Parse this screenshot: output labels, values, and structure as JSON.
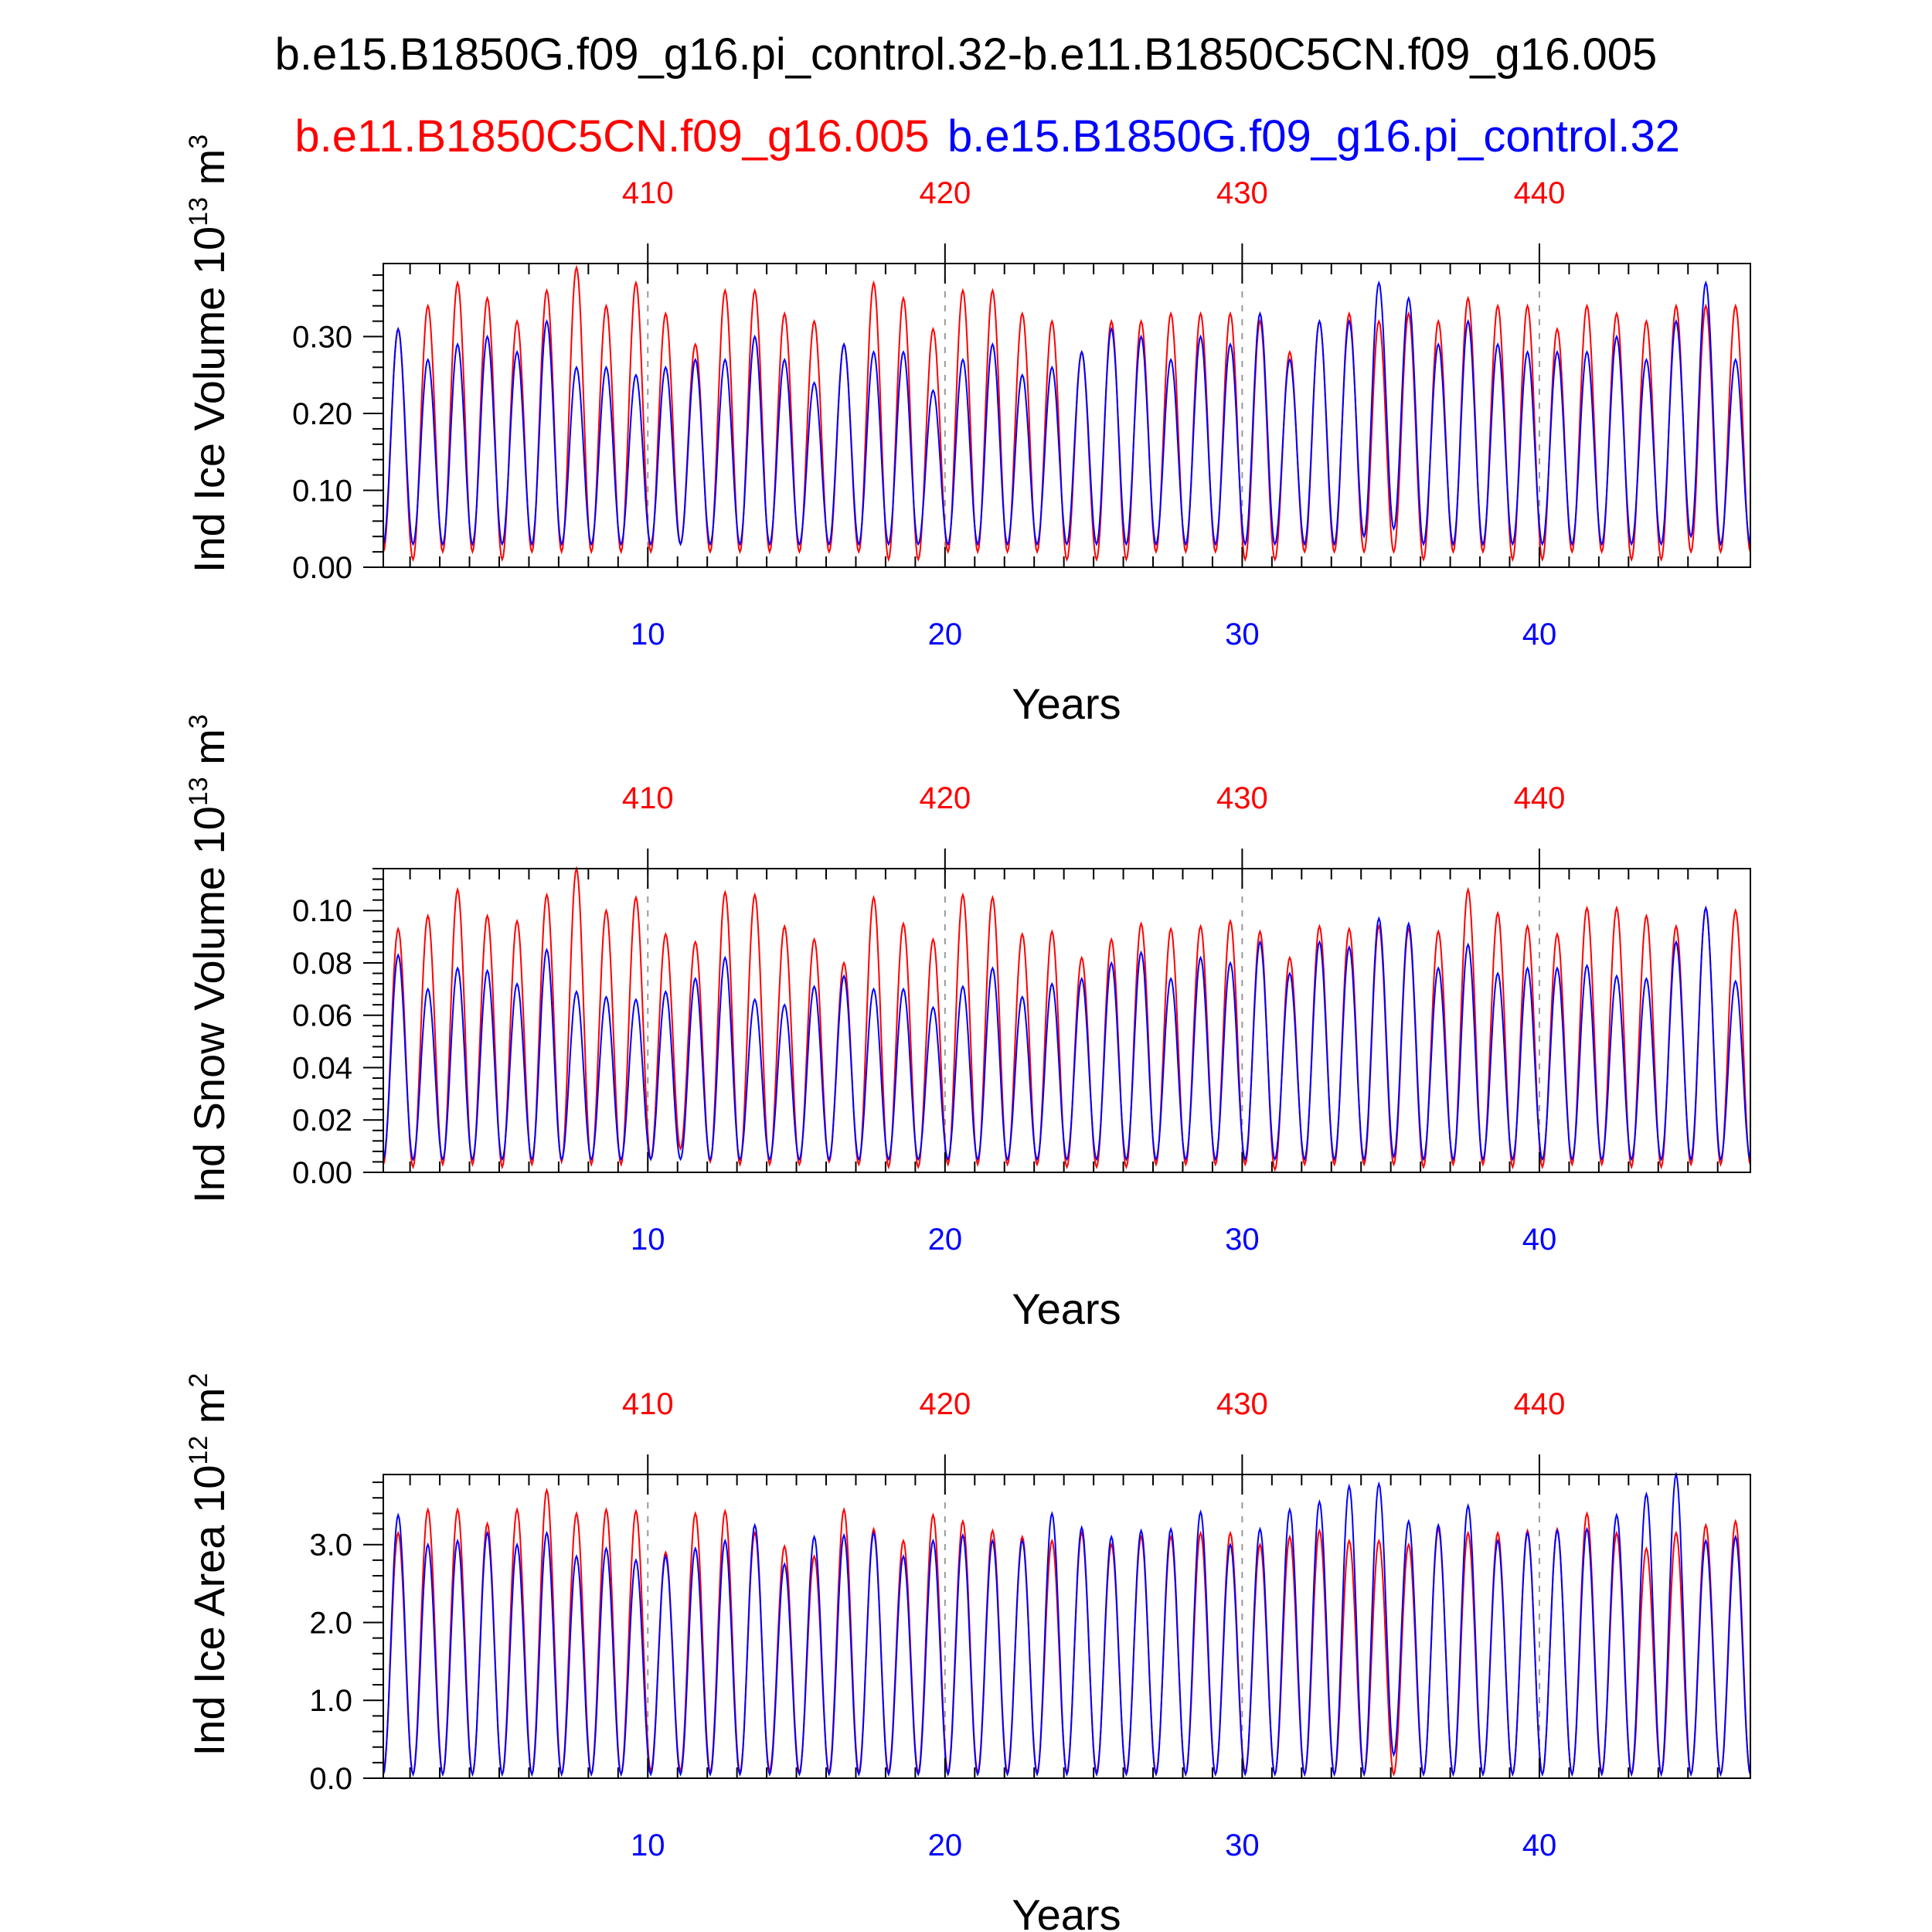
{
  "title": "b.e15.B1850G.f09_g16.pi_control.32-b.e11.B1850C5CN.f09_g16.005",
  "legend": {
    "red": "b.e11.B1850C5CN.f09_g16.005",
    "blue": "b.e15.B1850G.f09_g16.pi_control.32"
  },
  "colors": {
    "red": "#ff0000",
    "blue": "#0000ff",
    "axis": "#000000",
    "grid": "#999999"
  },
  "chart_data": [
    {
      "type": "line",
      "ylabel_main": "Ind Ice Volume 10",
      "ylabel_exp": "13",
      "ylabel_unit": " m",
      "ylabel_unit_exp": "3",
      "xlabel": "Years",
      "x_range": [
        1.1,
        47.1
      ],
      "ylim": [
        0,
        0.395
      ],
      "yticks": [
        0.0,
        0.1,
        0.2,
        0.3
      ],
      "ytick_labels": [
        "0.00",
        "0.10",
        "0.20",
        "0.30"
      ],
      "xticks_bottom": [
        10,
        20,
        30,
        40
      ],
      "xtick_labels_bottom": [
        "10",
        "20",
        "30",
        "40"
      ],
      "xticks_top": [
        10,
        20,
        30,
        40
      ],
      "xtick_labels_top": [
        "410",
        "420",
        "430",
        "440"
      ],
      "series": [
        {
          "name": "b.e11.B1850C5CN.f09_g16.005",
          "color": "red",
          "peaks": [
            0.31,
            0.34,
            0.37,
            0.35,
            0.32,
            0.36,
            0.39,
            0.34,
            0.37,
            0.33,
            0.29,
            0.36,
            0.36,
            0.33,
            0.32,
            0.29,
            0.37,
            0.35,
            0.31,
            0.36,
            0.36,
            0.33,
            0.32,
            0.28,
            0.32,
            0.32,
            0.33,
            0.33,
            0.33,
            0.32,
            0.28,
            0.32,
            0.33,
            0.32,
            0.33,
            0.32,
            0.35,
            0.34,
            0.34,
            0.31,
            0.34,
            0.33,
            0.32,
            0.34,
            0.34,
            0.34
          ],
          "troughs": [
            0.02,
            0.01,
            0.02,
            0.02,
            0.01,
            0.02,
            0.02,
            0.02,
            0.02,
            0.02,
            0.03,
            0.02,
            0.02,
            0.02,
            0.02,
            0.02,
            0.02,
            0.01,
            0.01,
            0.02,
            0.02,
            0.02,
            0.02,
            0.01,
            0.01,
            0.01,
            0.02,
            0.02,
            0.02,
            0.01,
            0.01,
            0.02,
            0.02,
            0.02,
            0.02,
            0.01,
            0.02,
            0.02,
            0.01,
            0.01,
            0.02,
            0.02,
            0.01,
            0.01,
            0.02,
            0.02
          ]
        },
        {
          "name": "b.e15.B1850G.f09_g16.pi_control.32",
          "color": "blue",
          "peaks": [
            0.31,
            0.27,
            0.29,
            0.3,
            0.28,
            0.32,
            0.26,
            0.26,
            0.25,
            0.26,
            0.27,
            0.27,
            0.3,
            0.27,
            0.24,
            0.29,
            0.28,
            0.28,
            0.23,
            0.27,
            0.29,
            0.25,
            0.26,
            0.28,
            0.31,
            0.3,
            0.27,
            0.3,
            0.29,
            0.33,
            0.27,
            0.32,
            0.32,
            0.37,
            0.35,
            0.29,
            0.32,
            0.29,
            0.28,
            0.28,
            0.28,
            0.3,
            0.27,
            0.32,
            0.37,
            0.27
          ],
          "troughs": [
            0.03,
            0.03,
            0.03,
            0.03,
            0.03,
            0.03,
            0.03,
            0.03,
            0.03,
            0.03,
            0.03,
            0.03,
            0.03,
            0.03,
            0.03,
            0.03,
            0.03,
            0.03,
            0.03,
            0.03,
            0.03,
            0.03,
            0.03,
            0.03,
            0.03,
            0.03,
            0.03,
            0.03,
            0.03,
            0.03,
            0.03,
            0.03,
            0.03,
            0.04,
            0.05,
            0.03,
            0.03,
            0.03,
            0.03,
            0.03,
            0.03,
            0.03,
            0.03,
            0.03,
            0.04,
            0.03
          ]
        }
      ]
    },
    {
      "type": "line",
      "ylabel_main": "Ind Snow Volume 10",
      "ylabel_exp": "13",
      "ylabel_unit": " m",
      "ylabel_unit_exp": "3",
      "xlabel": "Years",
      "x_range": [
        1.1,
        47.1
      ],
      "ylim": [
        0,
        0.116
      ],
      "yticks": [
        0.0,
        0.02,
        0.04,
        0.06,
        0.08,
        0.1
      ],
      "ytick_labels": [
        "0.00",
        "0.02",
        "0.04",
        "0.06",
        "0.08",
        "0.10"
      ],
      "xticks_bottom": [
        10,
        20,
        30,
        40
      ],
      "xtick_labels_bottom": [
        "10",
        "20",
        "30",
        "40"
      ],
      "xticks_top": [
        10,
        20,
        30,
        40
      ],
      "xtick_labels_top": [
        "410",
        "420",
        "430",
        "440"
      ],
      "series": [
        {
          "name": "b.e11.B1850C5CN.f09_g16.005",
          "color": "red",
          "peaks": [
            0.093,
            0.098,
            0.108,
            0.098,
            0.096,
            0.106,
            0.116,
            0.1,
            0.105,
            0.091,
            0.088,
            0.107,
            0.106,
            0.094,
            0.089,
            0.08,
            0.105,
            0.095,
            0.089,
            0.106,
            0.105,
            0.091,
            0.092,
            0.082,
            0.089,
            0.095,
            0.093,
            0.094,
            0.096,
            0.092,
            0.082,
            0.094,
            0.093,
            0.094,
            0.093,
            0.092,
            0.108,
            0.099,
            0.094,
            0.091,
            0.101,
            0.101,
            0.098,
            0.094,
            0.101,
            0.1
          ],
          "troughs": [
            0.003,
            0.002,
            0.003,
            0.003,
            0.002,
            0.003,
            0.004,
            0.003,
            0.003,
            0.005,
            0.009,
            0.004,
            0.003,
            0.003,
            0.003,
            0.004,
            0.003,
            0.002,
            0.002,
            0.003,
            0.003,
            0.003,
            0.003,
            0.002,
            0.002,
            0.002,
            0.003,
            0.003,
            0.003,
            0.003,
            0.001,
            0.003,
            0.003,
            0.003,
            0.003,
            0.002,
            0.003,
            0.003,
            0.002,
            0.002,
            0.003,
            0.003,
            0.002,
            0.002,
            0.003,
            0.003
          ]
        },
        {
          "name": "b.e15.B1850G.f09_g16.pi_control.32",
          "color": "blue",
          "peaks": [
            0.083,
            0.07,
            0.078,
            0.077,
            0.072,
            0.085,
            0.069,
            0.067,
            0.066,
            0.069,
            0.074,
            0.082,
            0.066,
            0.064,
            0.071,
            0.075,
            0.07,
            0.07,
            0.063,
            0.071,
            0.078,
            0.067,
            0.072,
            0.074,
            0.08,
            0.084,
            0.074,
            0.082,
            0.08,
            0.088,
            0.076,
            0.088,
            0.086,
            0.097,
            0.095,
            0.078,
            0.087,
            0.076,
            0.078,
            0.078,
            0.079,
            0.075,
            0.074,
            0.088,
            0.101,
            0.073
          ],
          "troughs": [
            0.005,
            0.005,
            0.005,
            0.005,
            0.005,
            0.005,
            0.005,
            0.005,
            0.005,
            0.005,
            0.005,
            0.005,
            0.005,
            0.005,
            0.005,
            0.005,
            0.005,
            0.005,
            0.005,
            0.005,
            0.005,
            0.005,
            0.005,
            0.005,
            0.005,
            0.005,
            0.005,
            0.005,
            0.005,
            0.005,
            0.005,
            0.005,
            0.005,
            0.005,
            0.006,
            0.005,
            0.005,
            0.005,
            0.005,
            0.005,
            0.005,
            0.005,
            0.005,
            0.005,
            0.005,
            0.005
          ]
        }
      ]
    },
    {
      "type": "line",
      "ylabel_main": "Ind Ice Area 10",
      "ylabel_exp": "12",
      "ylabel_unit": " m",
      "ylabel_unit_exp": "2",
      "xlabel": "Years",
      "x_range": [
        1.1,
        47.1
      ],
      "ylim": [
        0,
        3.9
      ],
      "yticks": [
        0.0,
        1.0,
        2.0,
        3.0
      ],
      "ytick_labels": [
        "0.0",
        "1.0",
        "2.0",
        "3.0"
      ],
      "xticks_bottom": [
        10,
        20,
        30,
        40
      ],
      "xtick_labels_bottom": [
        "10",
        "20",
        "30",
        "40"
      ],
      "xticks_top": [
        10,
        20,
        30,
        40
      ],
      "xtick_labels_top": [
        "410",
        "420",
        "430",
        "440"
      ],
      "series": [
        {
          "name": "b.e11.B1850C5CN.f09_g16.005",
          "color": "red",
          "peaks": [
            3.15,
            3.45,
            3.45,
            3.27,
            3.45,
            3.7,
            3.4,
            3.45,
            3.43,
            2.9,
            3.4,
            3.43,
            3.15,
            2.98,
            2.85,
            3.45,
            3.2,
            3.05,
            3.38,
            3.3,
            3.18,
            3.1,
            3.05,
            3.15,
            3.0,
            3.1,
            3.1,
            3.15,
            3.15,
            3.0,
            3.1,
            3.18,
            3.05,
            3.05,
            3.0,
            3.2,
            3.15,
            3.15,
            3.18,
            3.2,
            3.4,
            3.15,
            2.95,
            3.15,
            3.25,
            3.3
          ],
          "troughs": [
            0.1,
            0.05,
            0.05,
            0.05,
            0.05,
            0.05,
            0.05,
            0.05,
            0.05,
            0.1,
            0.1,
            0.08,
            0.08,
            0.1,
            0.08,
            0.08,
            0.08,
            0.08,
            0.08,
            0.08,
            0.08,
            0.08,
            0.08,
            0.08,
            0.08,
            0.08,
            0.08,
            0.05,
            0.05,
            0.08,
            0.05,
            0.05,
            0.05,
            0.05,
            0.05,
            0.05,
            0.05,
            0.05,
            0.05,
            0.05,
            0.05,
            0.08,
            0.05,
            0.05,
            0.05,
            0.05
          ]
        },
        {
          "name": "b.e15.B1850G.f09_g16.pi_control.32",
          "color": "blue",
          "peaks": [
            3.38,
            3.0,
            3.05,
            3.15,
            3.0,
            3.15,
            2.85,
            2.95,
            2.8,
            2.85,
            2.95,
            3.05,
            3.25,
            2.75,
            3.1,
            3.12,
            3.15,
            2.85,
            3.05,
            3.12,
            3.05,
            3.05,
            3.4,
            3.22,
            3.1,
            3.18,
            3.2,
            3.42,
            3.0,
            3.2,
            3.45,
            3.55,
            3.75,
            3.78,
            3.3,
            3.25,
            3.5,
            3.05,
            3.15,
            3.18,
            3.2,
            3.38,
            3.65,
            3.9,
            3.05,
            3.1
          ],
          "troughs": [
            0.05,
            0.05,
            0.05,
            0.05,
            0.05,
            0.05,
            0.05,
            0.05,
            0.05,
            0.05,
            0.05,
            0.05,
            0.05,
            0.05,
            0.05,
            0.05,
            0.05,
            0.05,
            0.05,
            0.05,
            0.05,
            0.05,
            0.05,
            0.05,
            0.05,
            0.05,
            0.05,
            0.05,
            0.05,
            0.05,
            0.05,
            0.05,
            0.05,
            0.05,
            0.3,
            0.05,
            0.05,
            0.05,
            0.05,
            0.05,
            0.05,
            0.05,
            0.05,
            0.05,
            0.05,
            0.05
          ]
        }
      ]
    }
  ]
}
